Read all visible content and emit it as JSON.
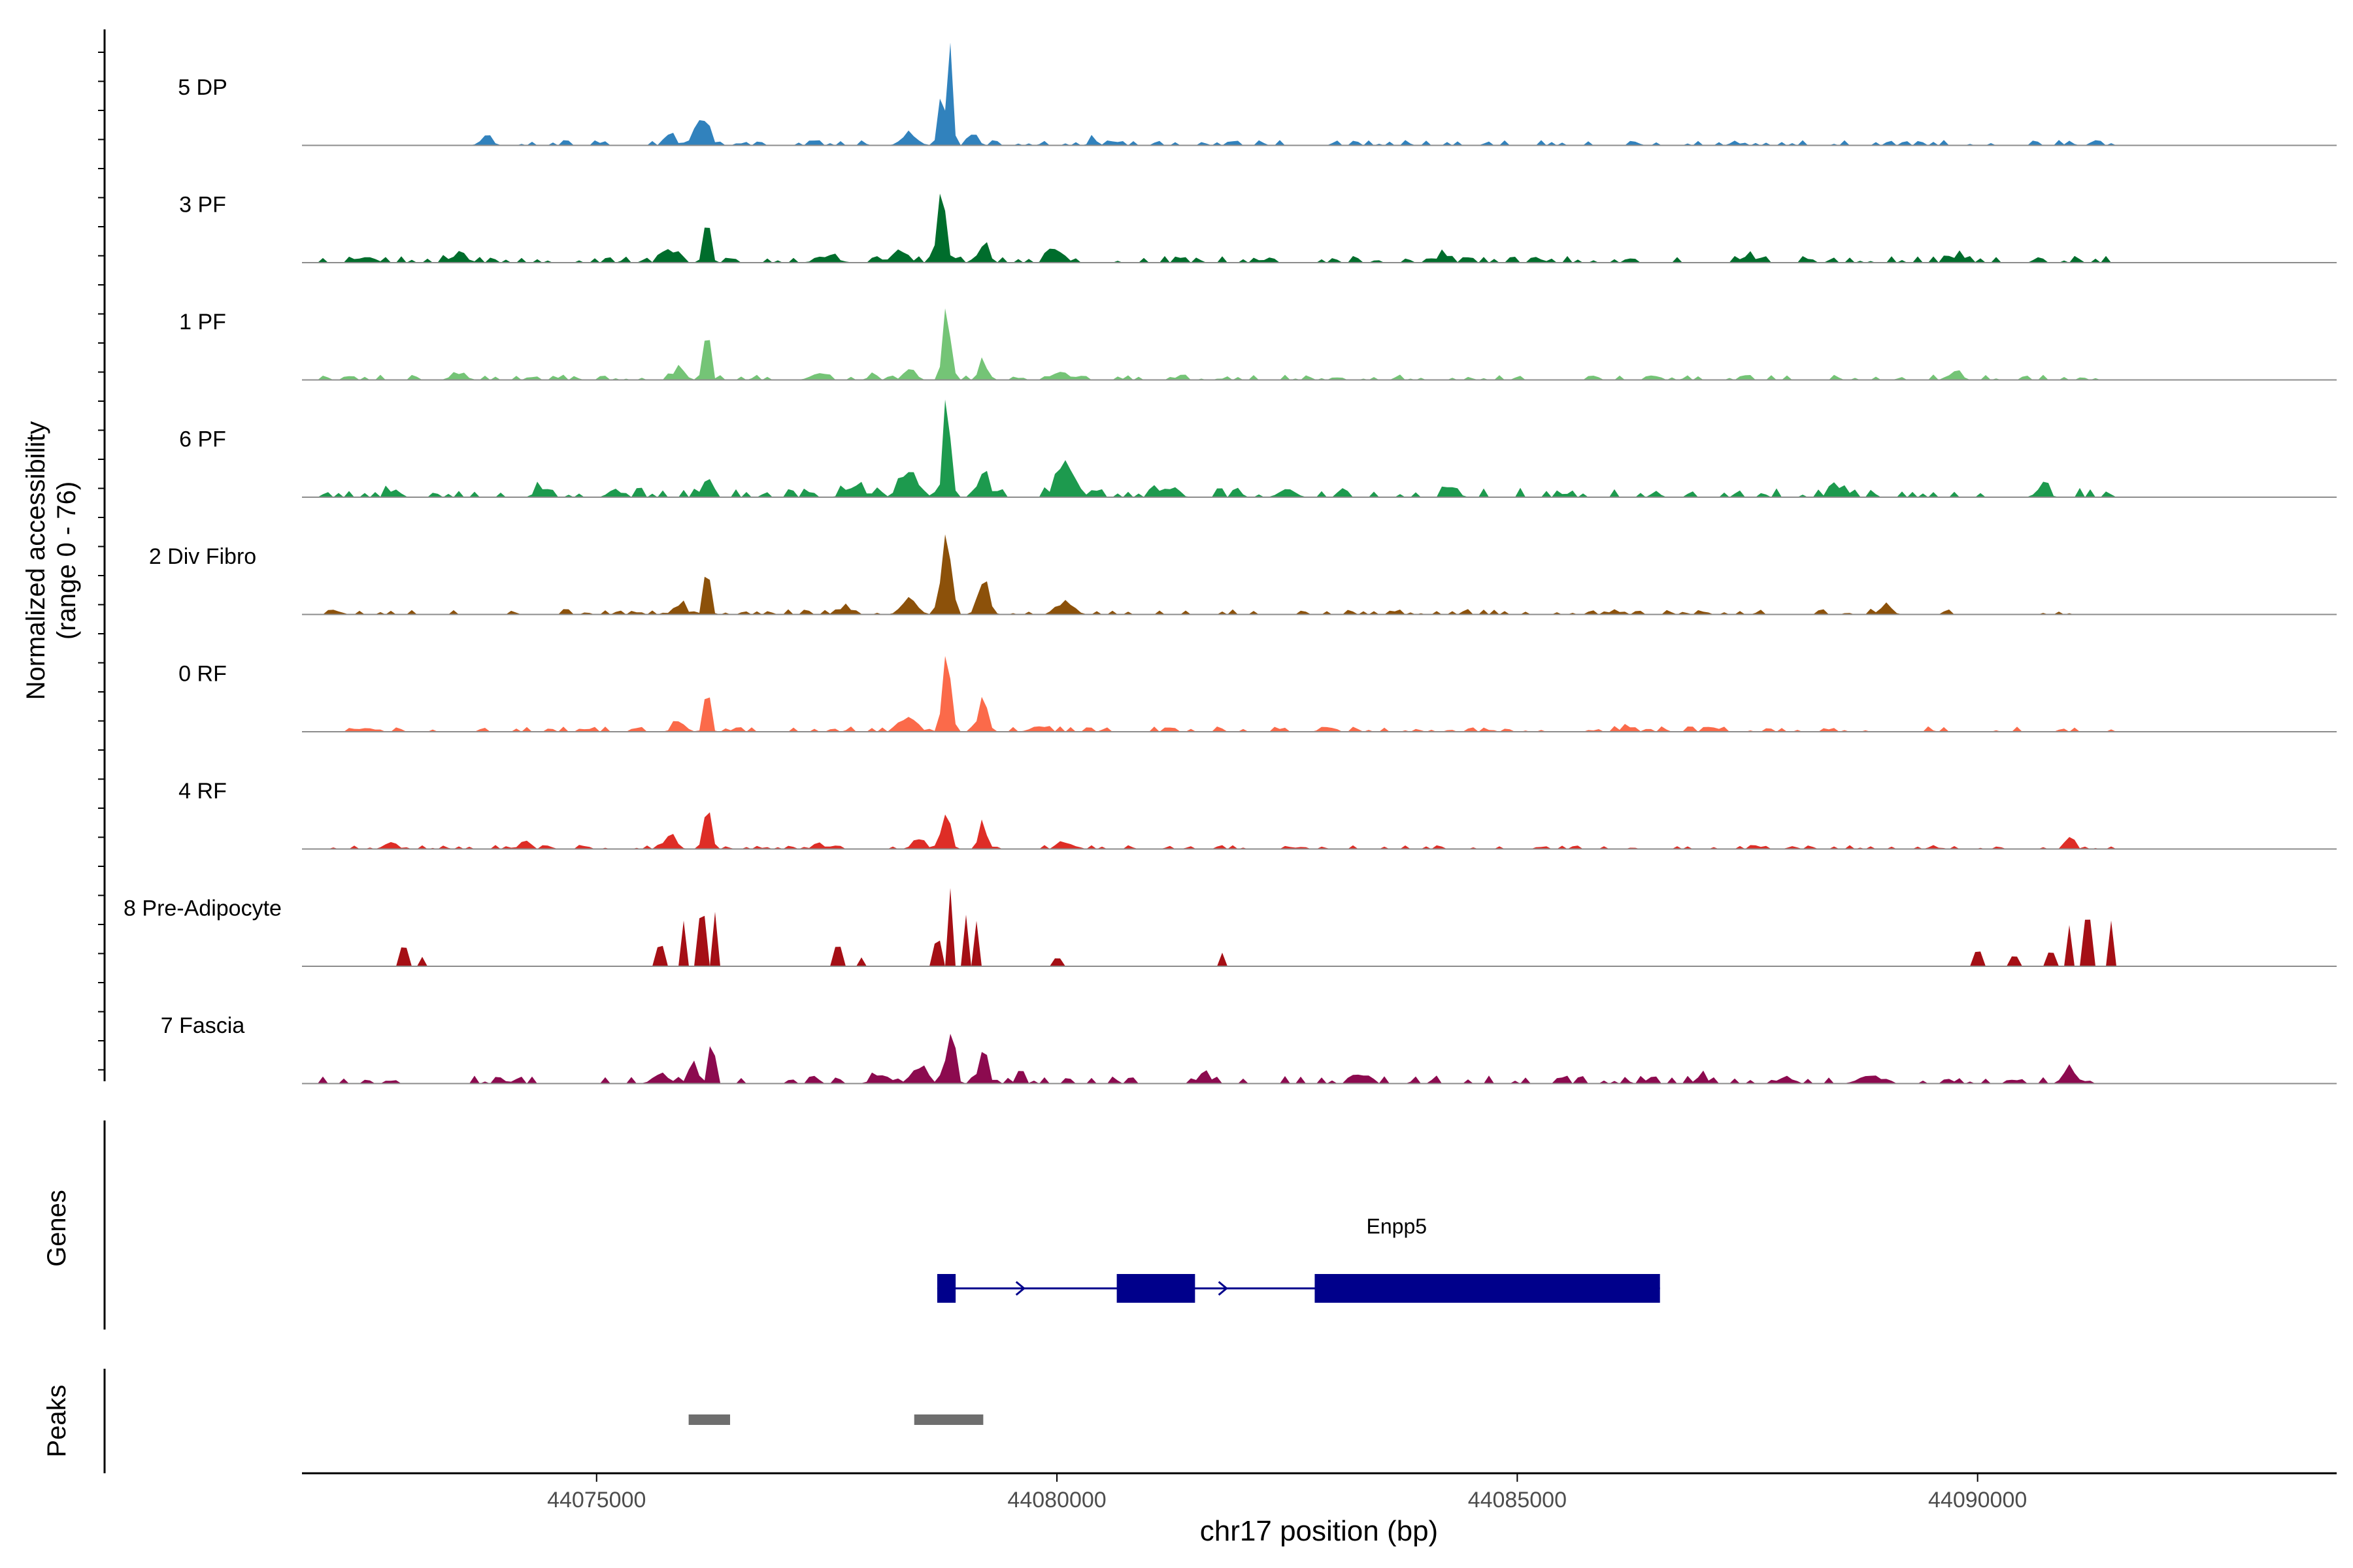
{
  "chart_data": {
    "type": "area",
    "title": "",
    "ylabel_line1": "Normalized accessibility",
    "ylabel_line2": "(range 0 - 76)",
    "y_range": [
      0,
      76
    ],
    "xlabel": "chr17 position (bp)",
    "xlim": [
      44071800,
      44093900
    ],
    "x_ticks": [
      {
        "value": 44075000,
        "label": "44075000"
      },
      {
        "value": 44080000,
        "label": "44080000"
      },
      {
        "value": 44085000,
        "label": "44085000"
      },
      {
        "value": 44090000,
        "label": "44090000"
      }
    ],
    "region_start": 44072000,
    "region_end": 44091500,
    "genes_label": "Genes",
    "peaks_label": "Peaks",
    "tracks": [
      {
        "name": "5 DP",
        "color": "#3182bd",
        "baseline": 0.04,
        "noise_regions": [
          [
            44073500,
            44092000
          ]
        ],
        "peaks": [
          [
            44073800,
            200,
            0.07
          ],
          [
            44075800,
            150,
            0.12
          ],
          [
            44076100,
            120,
            0.25
          ],
          [
            44076200,
            80,
            0.35
          ],
          [
            44078400,
            260,
            0.1
          ],
          [
            44078750,
            110,
            0.5
          ],
          [
            44078850,
            70,
            0.9
          ],
          [
            44079100,
            140,
            0.12
          ],
          [
            44080400,
            140,
            0.06
          ],
          [
            44091000,
            100,
            0.05
          ]
        ]
      },
      {
        "name": "3 PF",
        "color": "#006d2c",
        "baseline": 0.05,
        "noise_regions": [
          [
            44072000,
            44091500
          ]
        ],
        "peaks": [
          [
            44072500,
            300,
            0.05
          ],
          [
            44073500,
            300,
            0.06
          ],
          [
            44075800,
            250,
            0.1
          ],
          [
            44076200,
            110,
            0.42
          ],
          [
            44077500,
            350,
            0.05
          ],
          [
            44078300,
            250,
            0.12
          ],
          [
            44078750,
            140,
            0.65
          ],
          [
            44079200,
            170,
            0.18
          ],
          [
            44080000,
            250,
            0.12
          ],
          [
            44084200,
            200,
            0.08
          ],
          [
            44087500,
            250,
            0.06
          ],
          [
            44089800,
            250,
            0.06
          ]
        ]
      },
      {
        "name": "1 PF",
        "color": "#74c476",
        "baseline": 0.04,
        "noise_regions": [
          [
            44072000,
            44091500
          ]
        ],
        "peaks": [
          [
            44073500,
            250,
            0.06
          ],
          [
            44075900,
            200,
            0.1
          ],
          [
            44076200,
            100,
            0.55
          ],
          [
            44077400,
            250,
            0.06
          ],
          [
            44078000,
            120,
            0.08
          ],
          [
            44078400,
            180,
            0.12
          ],
          [
            44078800,
            120,
            0.68
          ],
          [
            44079200,
            100,
            0.2
          ],
          [
            44080000,
            250,
            0.06
          ],
          [
            44089800,
            120,
            0.09
          ]
        ]
      },
      {
        "name": "6 PF",
        "color": "#1d9a4e",
        "baseline": 0.07,
        "noise_regions": [
          [
            44072000,
            44091500
          ]
        ],
        "peaks": [
          [
            44072800,
            200,
            0.07
          ],
          [
            44074400,
            200,
            0.08
          ],
          [
            44075200,
            200,
            0.08
          ],
          [
            44076200,
            120,
            0.22
          ],
          [
            44077800,
            300,
            0.1
          ],
          [
            44078400,
            300,
            0.22
          ],
          [
            44078800,
            110,
            0.95
          ],
          [
            44079200,
            180,
            0.22
          ],
          [
            44080100,
            300,
            0.3
          ],
          [
            44081200,
            300,
            0.08
          ],
          [
            44082500,
            250,
            0.08
          ],
          [
            44084300,
            200,
            0.07
          ],
          [
            44088500,
            300,
            0.08
          ],
          [
            44090700,
            200,
            0.08
          ]
        ]
      },
      {
        "name": "2 Div Fibro",
        "color": "#8c510a",
        "baseline": 0.04,
        "noise_regions": [
          [
            44072000,
            44091500
          ]
        ],
        "peaks": [
          [
            44075900,
            200,
            0.1
          ],
          [
            44076200,
            100,
            0.45
          ],
          [
            44077700,
            250,
            0.06
          ],
          [
            44078400,
            250,
            0.15
          ],
          [
            44078800,
            150,
            0.9
          ],
          [
            44079200,
            180,
            0.3
          ],
          [
            44080100,
            250,
            0.13
          ],
          [
            44089000,
            200,
            0.08
          ]
        ]
      },
      {
        "name": "0 RF",
        "color": "#fb6a4a",
        "baseline": 0.04,
        "noise_regions": [
          [
            44072000,
            44091500
          ]
        ],
        "peaks": [
          [
            44075900,
            200,
            0.1
          ],
          [
            44076200,
            100,
            0.4
          ],
          [
            44078400,
            250,
            0.14
          ],
          [
            44078800,
            130,
            0.75
          ],
          [
            44079200,
            150,
            0.3
          ],
          [
            44079800,
            250,
            0.06
          ],
          [
            44086200,
            200,
            0.05
          ]
        ]
      },
      {
        "name": "4 RF",
        "color": "#de2d26",
        "baseline": 0.03,
        "noise_regions": [
          [
            44072000,
            44091500
          ]
        ],
        "peaks": [
          [
            44072800,
            150,
            0.05
          ],
          [
            44074200,
            150,
            0.06
          ],
          [
            44075800,
            200,
            0.12
          ],
          [
            44076200,
            110,
            0.45
          ],
          [
            44077400,
            150,
            0.06
          ],
          [
            44078500,
            200,
            0.1
          ],
          [
            44078800,
            130,
            0.4
          ],
          [
            44079200,
            120,
            0.25
          ],
          [
            44080100,
            200,
            0.06
          ],
          [
            44091000,
            150,
            0.12
          ]
        ]
      },
      {
        "name": "8 Pre-Adipocyte",
        "color": "#a50f15",
        "baseline": 0.0,
        "noise_regions": [],
        "peaks": [
          [
            44072900,
            100,
            0.2
          ],
          [
            44073100,
            60,
            0.1
          ],
          [
            44075700,
            120,
            0.2
          ],
          [
            44075950,
            80,
            0.45
          ],
          [
            44076150,
            100,
            0.5
          ],
          [
            44076300,
            80,
            0.55
          ],
          [
            44077600,
            100,
            0.2
          ],
          [
            44077900,
            60,
            0.1
          ],
          [
            44078700,
            60,
            0.25
          ],
          [
            44078850,
            70,
            0.8
          ],
          [
            44079000,
            60,
            0.5
          ],
          [
            44079150,
            60,
            0.5
          ],
          [
            44080000,
            150,
            0.08
          ],
          [
            44081800,
            80,
            0.15
          ],
          [
            44090000,
            100,
            0.15
          ],
          [
            44090400,
            60,
            0.1
          ],
          [
            44090800,
            80,
            0.15
          ],
          [
            44091000,
            80,
            0.4
          ],
          [
            44091200,
            80,
            0.45
          ],
          [
            44091450,
            50,
            0.45
          ]
        ]
      },
      {
        "name": "7 Fascia",
        "color": "#8c0a4f",
        "baseline": 0.06,
        "noise_regions": [
          [
            44072000,
            44091500
          ]
        ],
        "peaks": [
          [
            44075700,
            250,
            0.1
          ],
          [
            44076050,
            150,
            0.2
          ],
          [
            44076250,
            100,
            0.38
          ],
          [
            44078100,
            300,
            0.08
          ],
          [
            44078500,
            250,
            0.15
          ],
          [
            44078850,
            130,
            0.55
          ],
          [
            44079200,
            150,
            0.3
          ],
          [
            44079600,
            120,
            0.12
          ],
          [
            44081600,
            200,
            0.08
          ],
          [
            44083300,
            250,
            0.08
          ],
          [
            44087000,
            200,
            0.06
          ],
          [
            44088800,
            300,
            0.08
          ],
          [
            44091000,
            200,
            0.15
          ]
        ]
      }
    ],
    "gene": {
      "name": "Enpp5",
      "color": "#00008b",
      "start": 44078700,
      "end": 44086550,
      "exons": [
        [
          44078700,
          44078900
        ],
        [
          44080650,
          44081500
        ],
        [
          44082800,
          44086550
        ]
      ],
      "arrows": [
        44078750,
        44079600,
        44081800
      ]
    },
    "peak_regions": [
      [
        44076000,
        44076450
      ],
      [
        44078450,
        44079200
      ]
    ],
    "peak_color": "#6e6e6e"
  }
}
